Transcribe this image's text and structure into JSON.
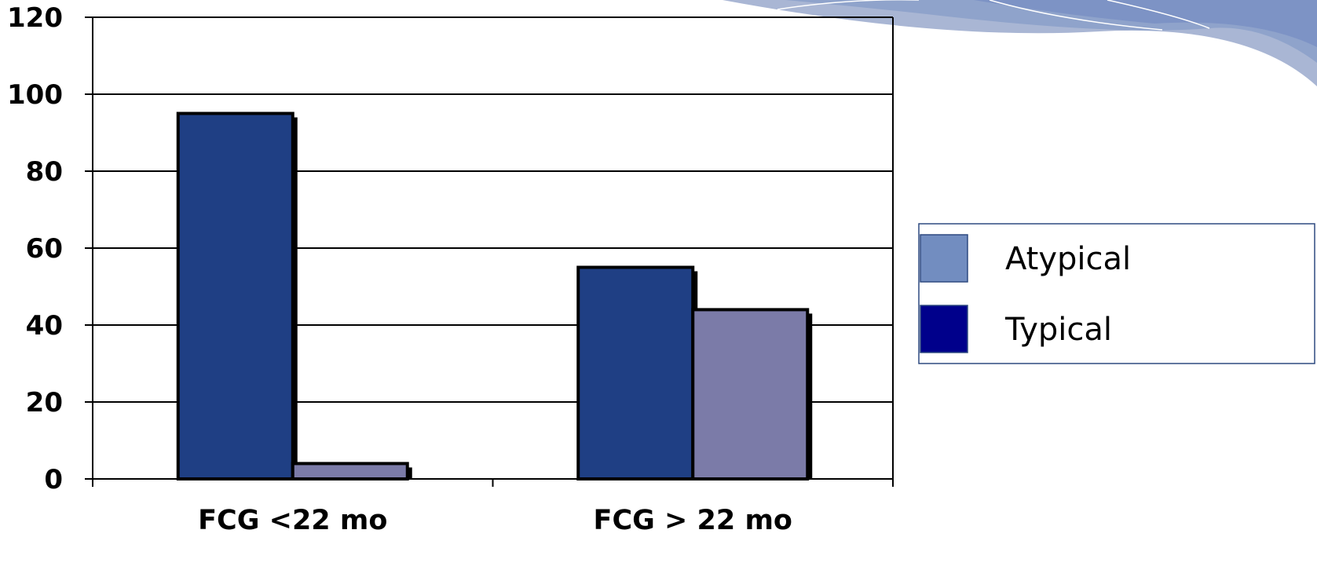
{
  "chart_data": {
    "type": "bar",
    "categories": [
      "FCG <22 mo",
      "FCG > 22 mo"
    ],
    "series": [
      {
        "name": "Typical",
        "values": [
          95,
          55
        ],
        "color": "#1F3F84",
        "legend_color": "#00008B"
      },
      {
        "name": "Atypical",
        "values": [
          4,
          44
        ],
        "color": "#7B7BA8",
        "legend_color": "#728DC0"
      }
    ],
    "ylim": [
      0,
      120
    ],
    "yticks": [
      0,
      20,
      40,
      60,
      80,
      100,
      120
    ],
    "grid": true,
    "legend_position": "right",
    "legend_order": [
      "Atypical",
      "Typical"
    ],
    "title": "",
    "xlabel": "",
    "ylabel": ""
  },
  "decoration": {
    "name": "banner-swoosh",
    "colors": [
      "#A9B6D4",
      "#8FA3CB",
      "#7D93C5"
    ]
  }
}
